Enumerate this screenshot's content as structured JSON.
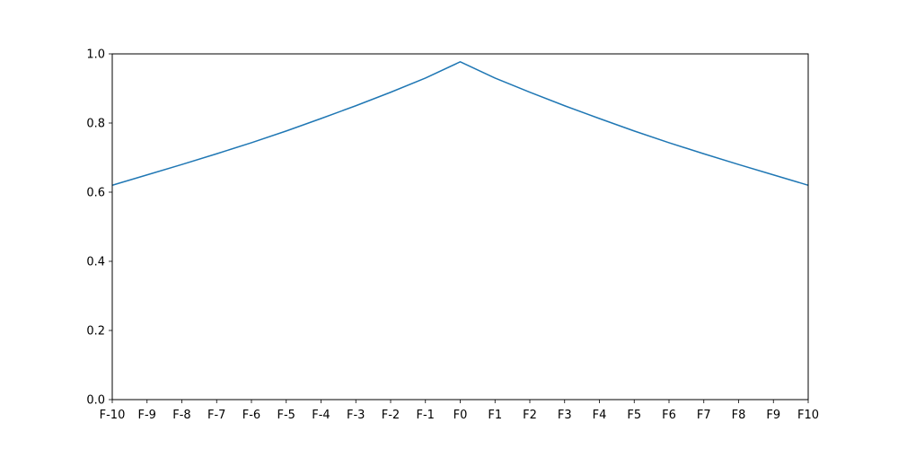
{
  "chart_data": {
    "type": "line",
    "title": "",
    "xlabel": "",
    "ylabel": "",
    "categories": [
      "F-10",
      "F-9",
      "F-8",
      "F-7",
      "F-6",
      "F-5",
      "F-4",
      "F-3",
      "F-2",
      "F-1",
      "F0",
      "F1",
      "F2",
      "F3",
      "F4",
      "F5",
      "F6",
      "F7",
      "F8",
      "F9",
      "F10"
    ],
    "series": [
      {
        "values": [
          0.62,
          0.65,
          0.68,
          0.711,
          0.743,
          0.777,
          0.813,
          0.85,
          0.889,
          0.93,
          0.977,
          0.93,
          0.889,
          0.85,
          0.813,
          0.777,
          0.743,
          0.711,
          0.68,
          0.65,
          0.62
        ],
        "color": "#1f77b4"
      }
    ],
    "ylim": [
      0,
      1.0
    ],
    "yticks": [
      "0.0",
      "0.2",
      "0.4",
      "0.6",
      "0.8",
      "1.0"
    ],
    "grid": false,
    "legend": "none"
  }
}
